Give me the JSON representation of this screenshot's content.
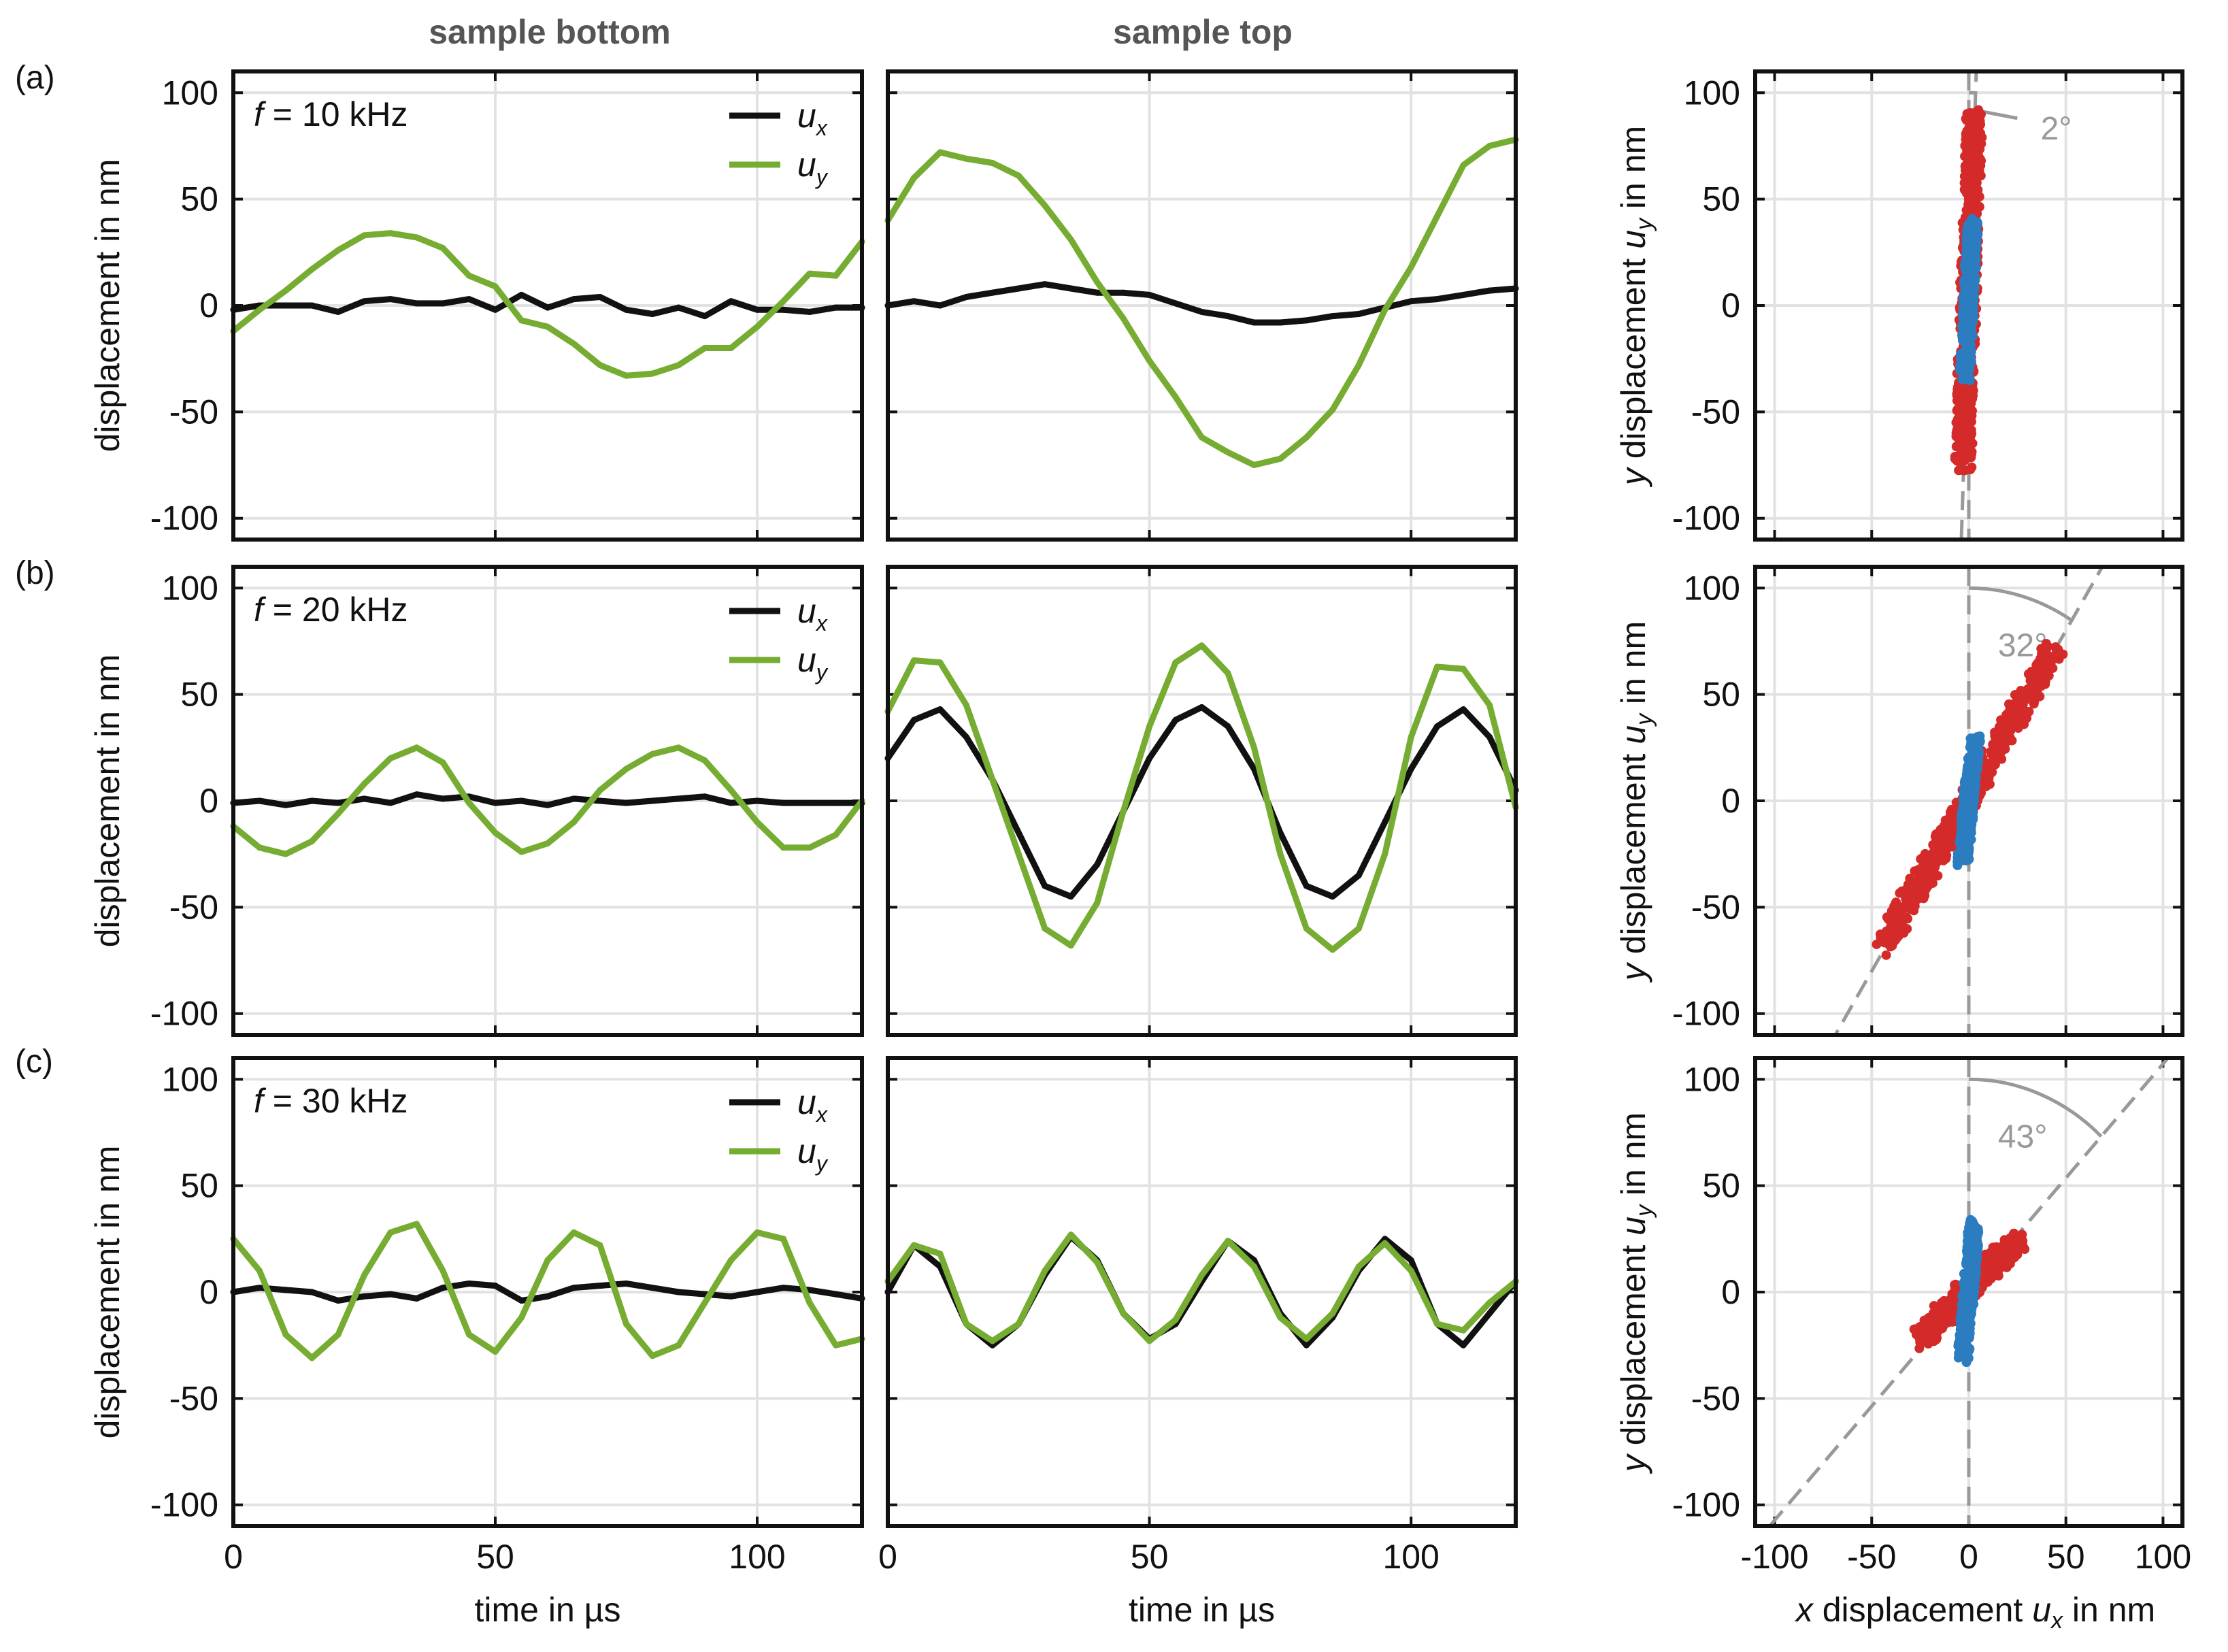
{
  "titles": [
    "sample bottom",
    "sample top"
  ],
  "panel_labels": [
    "(a)",
    "(b)",
    "(c)"
  ],
  "freq_prefix": "f",
  "freq_labels": [
    "= 10 kHz",
    "= 20 kHz",
    "= 30 kHz"
  ],
  "legend": [
    {
      "name": "u",
      "sub": "x",
      "color": "#111111"
    },
    {
      "name": "u",
      "sub": "y",
      "color": "#76ac31"
    }
  ],
  "angle_labels": [
    "2°",
    "32°",
    "43°"
  ],
  "colors": {
    "ux": "#111111",
    "uy": "#76ac31",
    "bottom_scatter": "#d42a2a",
    "top_scatter": "#2b7dc0",
    "grid": "#e2e2e2",
    "guide": "#999999"
  },
  "chart_data": [
    {
      "type": "line",
      "panel": "a",
      "column": "sample bottom",
      "frequency_khz": 10,
      "xlabel": "time in µs",
      "ylabel": "displacement in nm",
      "xlim": [
        0,
        120
      ],
      "ylim": [
        -110,
        110
      ],
      "xticks": [
        0,
        50,
        100
      ],
      "yticks": [
        -100,
        -50,
        0,
        50,
        100
      ],
      "series": [
        {
          "name": "u_x",
          "x": [
            0,
            5,
            10,
            15,
            20,
            25,
            30,
            35,
            40,
            45,
            50,
            55,
            60,
            65,
            70,
            75,
            80,
            85,
            90,
            95,
            100,
            105,
            110,
            115,
            120
          ],
          "values": [
            -2,
            0,
            0,
            0,
            -3,
            2,
            3,
            1,
            1,
            3,
            -2,
            5,
            -1,
            3,
            4,
            -2,
            -4,
            -1,
            -5,
            2,
            -2,
            -2,
            -3,
            -1,
            -1
          ]
        },
        {
          "name": "u_y",
          "x": [
            0,
            5,
            10,
            15,
            20,
            25,
            30,
            35,
            40,
            45,
            50,
            55,
            60,
            65,
            70,
            75,
            80,
            85,
            90,
            95,
            100,
            105,
            110,
            115,
            120
          ],
          "values": [
            -12,
            -2,
            7,
            17,
            26,
            33,
            34,
            32,
            27,
            14,
            9,
            -7,
            -10,
            -18,
            -28,
            -33,
            -32,
            -28,
            -20,
            -20,
            -10,
            2,
            15,
            14,
            30
          ]
        }
      ]
    },
    {
      "type": "line",
      "panel": "a",
      "column": "sample top",
      "frequency_khz": 10,
      "xlabel": "time in µs",
      "ylabel": "",
      "xlim": [
        0,
        120
      ],
      "ylim": [
        -110,
        110
      ],
      "xticks": [
        0,
        50,
        100
      ],
      "yticks": [
        -100,
        -50,
        0,
        50,
        100
      ],
      "series": [
        {
          "name": "u_x",
          "x": [
            0,
            5,
            10,
            15,
            20,
            25,
            30,
            35,
            40,
            45,
            50,
            55,
            60,
            65,
            70,
            75,
            80,
            85,
            90,
            95,
            100,
            105,
            110,
            115,
            120
          ],
          "values": [
            0,
            2,
            0,
            4,
            6,
            8,
            10,
            8,
            6,
            6,
            5,
            1,
            -3,
            -5,
            -8,
            -8,
            -7,
            -5,
            -4,
            -1,
            2,
            3,
            5,
            7,
            8
          ]
        },
        {
          "name": "u_y",
          "x": [
            0,
            5,
            10,
            15,
            20,
            25,
            30,
            35,
            40,
            45,
            50,
            55,
            60,
            65,
            70,
            75,
            80,
            85,
            90,
            95,
            100,
            105,
            110,
            115,
            120
          ],
          "values": [
            40,
            60,
            72,
            69,
            67,
            61,
            47,
            31,
            11,
            -6,
            -26,
            -43,
            -62,
            -69,
            -75,
            -72,
            -62,
            -49,
            -28,
            -2,
            18,
            42,
            66,
            75,
            78
          ]
        }
      ]
    },
    {
      "type": "scatter",
      "panel": "a",
      "column": "polarization",
      "frequency_khz": 10,
      "xlabel": "x displacement u_x in nm",
      "ylabel": "y displacement u_y in nm",
      "xlim": [
        -110,
        110
      ],
      "ylim": [
        -110,
        110
      ],
      "xticks": [
        -100,
        -50,
        0,
        50,
        100
      ],
      "yticks": [
        -100,
        -50,
        0,
        50,
        100
      ],
      "angle_deg": 2,
      "series": [
        {
          "name": "sample bottom",
          "x": [
            -3,
            3
          ],
          "y": [
            -75,
            92
          ]
        },
        {
          "name": "sample top",
          "x": [
            -2,
            2
          ],
          "y": [
            -35,
            40
          ]
        }
      ]
    },
    {
      "type": "line",
      "panel": "b",
      "column": "sample bottom",
      "frequency_khz": 20,
      "xlabel": "time in µs",
      "ylabel": "displacement in nm",
      "xlim": [
        0,
        120
      ],
      "ylim": [
        -110,
        110
      ],
      "xticks": [
        0,
        50,
        100
      ],
      "yticks": [
        -100,
        -50,
        0,
        50,
        100
      ],
      "series": [
        {
          "name": "u_x",
          "x": [
            0,
            5,
            10,
            15,
            20,
            25,
            30,
            35,
            40,
            45,
            50,
            55,
            60,
            65,
            70,
            75,
            80,
            85,
            90,
            95,
            100,
            105,
            110,
            115,
            120
          ],
          "values": [
            -1,
            0,
            -2,
            0,
            -1,
            1,
            -1,
            3,
            1,
            2,
            -1,
            0,
            -2,
            1,
            0,
            -1,
            0,
            1,
            2,
            -1,
            0,
            -1,
            -1,
            -1,
            -1
          ]
        },
        {
          "name": "u_y",
          "x": [
            0,
            5,
            10,
            15,
            20,
            25,
            30,
            35,
            40,
            45,
            50,
            55,
            60,
            65,
            70,
            75,
            80,
            85,
            90,
            95,
            100,
            105,
            110,
            115,
            120
          ],
          "values": [
            -12,
            -22,
            -25,
            -19,
            -6,
            8,
            20,
            25,
            18,
            -1,
            -15,
            -24,
            -20,
            -10,
            5,
            15,
            22,
            25,
            19,
            5,
            -10,
            -22,
            -22,
            -16,
            0
          ]
        }
      ]
    },
    {
      "type": "line",
      "panel": "b",
      "column": "sample top",
      "frequency_khz": 20,
      "xlabel": "time in µs",
      "ylabel": "",
      "xlim": [
        0,
        120
      ],
      "ylim": [
        -110,
        110
      ],
      "xticks": [
        0,
        50,
        100
      ],
      "yticks": [
        -100,
        -50,
        0,
        50,
        100
      ],
      "series": [
        {
          "name": "u_x",
          "x": [
            0,
            5,
            10,
            15,
            20,
            25,
            30,
            35,
            40,
            45,
            50,
            55,
            60,
            65,
            70,
            75,
            80,
            85,
            90,
            95,
            100,
            105,
            110,
            115,
            120
          ],
          "values": [
            20,
            38,
            43,
            30,
            10,
            -15,
            -40,
            -45,
            -30,
            -5,
            20,
            38,
            44,
            35,
            15,
            -15,
            -40,
            -45,
            -35,
            -10,
            15,
            35,
            43,
            30,
            5
          ]
        },
        {
          "name": "u_y",
          "x": [
            0,
            5,
            10,
            15,
            20,
            25,
            30,
            35,
            40,
            45,
            50,
            55,
            60,
            65,
            70,
            75,
            80,
            85,
            90,
            95,
            100,
            105,
            110,
            115,
            120
          ],
          "values": [
            42,
            66,
            65,
            45,
            10,
            -25,
            -60,
            -68,
            -48,
            -5,
            35,
            65,
            73,
            60,
            25,
            -25,
            -60,
            -70,
            -60,
            -25,
            30,
            63,
            62,
            45,
            -3
          ]
        }
      ]
    },
    {
      "type": "scatter",
      "panel": "b",
      "column": "polarization",
      "frequency_khz": 20,
      "xlabel": "x displacement u_x in nm",
      "ylabel": "y displacement u_y in nm",
      "xlim": [
        -110,
        110
      ],
      "ylim": [
        -110,
        110
      ],
      "xticks": [
        -100,
        -50,
        0,
        50,
        100
      ],
      "yticks": [
        -100,
        -50,
        0,
        50,
        100
      ],
      "angle_deg": 32,
      "series": [
        {
          "name": "sample bottom",
          "x": [
            -44,
            45
          ],
          "y": [
            -68,
            72
          ]
        },
        {
          "name": "sample top",
          "x": [
            -3,
            3
          ],
          "y": [
            -28,
            28
          ]
        }
      ]
    },
    {
      "type": "line",
      "panel": "c",
      "column": "sample bottom",
      "frequency_khz": 30,
      "xlabel": "time in µs",
      "ylabel": "displacement in nm",
      "xlim": [
        0,
        120
      ],
      "ylim": [
        -110,
        110
      ],
      "xticks": [
        0,
        50,
        100
      ],
      "yticks": [
        -100,
        -50,
        0,
        50,
        100
      ],
      "series": [
        {
          "name": "u_x",
          "x": [
            0,
            5,
            10,
            15,
            20,
            25,
            30,
            35,
            40,
            45,
            50,
            55,
            60,
            65,
            70,
            75,
            80,
            85,
            90,
            95,
            100,
            105,
            110,
            115,
            120
          ],
          "values": [
            0,
            2,
            1,
            0,
            -4,
            -2,
            -1,
            -3,
            2,
            4,
            3,
            -4,
            -2,
            2,
            3,
            4,
            2,
            0,
            -1,
            -2,
            0,
            2,
            1,
            -1,
            -3
          ]
        },
        {
          "name": "u_y",
          "x": [
            0,
            5,
            10,
            15,
            20,
            25,
            30,
            35,
            40,
            45,
            50,
            55,
            60,
            65,
            70,
            75,
            80,
            85,
            90,
            95,
            100,
            105,
            110,
            115,
            120
          ],
          "values": [
            25,
            10,
            -20,
            -31,
            -20,
            8,
            28,
            32,
            10,
            -20,
            -28,
            -12,
            15,
            28,
            22,
            -15,
            -30,
            -25,
            -5,
            15,
            28,
            25,
            -5,
            -25,
            -22
          ]
        }
      ]
    },
    {
      "type": "line",
      "panel": "c",
      "column": "sample top",
      "frequency_khz": 30,
      "xlabel": "time in µs",
      "ylabel": "",
      "xlim": [
        0,
        120
      ],
      "ylim": [
        -110,
        110
      ],
      "xticks": [
        0,
        50,
        100
      ],
      "yticks": [
        -100,
        -50,
        0,
        50,
        100
      ],
      "series": [
        {
          "name": "u_x",
          "x": [
            0,
            5,
            10,
            15,
            20,
            25,
            30,
            35,
            40,
            45,
            50,
            55,
            60,
            65,
            70,
            75,
            80,
            85,
            90,
            95,
            100,
            105,
            110,
            115,
            120
          ],
          "values": [
            0,
            22,
            12,
            -15,
            -25,
            -15,
            8,
            26,
            15,
            -10,
            -22,
            -15,
            5,
            24,
            15,
            -10,
            -25,
            -12,
            10,
            25,
            15,
            -15,
            -25,
            -10,
            5
          ]
        },
        {
          "name": "u_y",
          "x": [
            0,
            5,
            10,
            15,
            20,
            25,
            30,
            35,
            40,
            45,
            50,
            55,
            60,
            65,
            70,
            75,
            80,
            85,
            90,
            95,
            100,
            105,
            110,
            115,
            120
          ],
          "values": [
            5,
            22,
            18,
            -15,
            -23,
            -15,
            10,
            27,
            14,
            -10,
            -23,
            -13,
            8,
            24,
            12,
            -12,
            -22,
            -10,
            12,
            23,
            10,
            -15,
            -18,
            -5,
            5
          ]
        }
      ]
    },
    {
      "type": "scatter",
      "panel": "c",
      "column": "polarization",
      "frequency_khz": 30,
      "xlabel": "x displacement u_x in nm",
      "ylabel": "y displacement u_y in nm",
      "xlim": [
        -110,
        110
      ],
      "ylim": [
        -110,
        110
      ],
      "xticks": [
        -100,
        -50,
        0,
        50,
        100
      ],
      "yticks": [
        -100,
        -50,
        0,
        50,
        100
      ],
      "angle_deg": 43,
      "series": [
        {
          "name": "sample bottom",
          "x": [
            -25,
            25
          ],
          "y": [
            -22,
            25
          ]
        },
        {
          "name": "sample top",
          "x": [
            -3,
            3
          ],
          "y": [
            -30,
            32
          ]
        }
      ]
    }
  ]
}
